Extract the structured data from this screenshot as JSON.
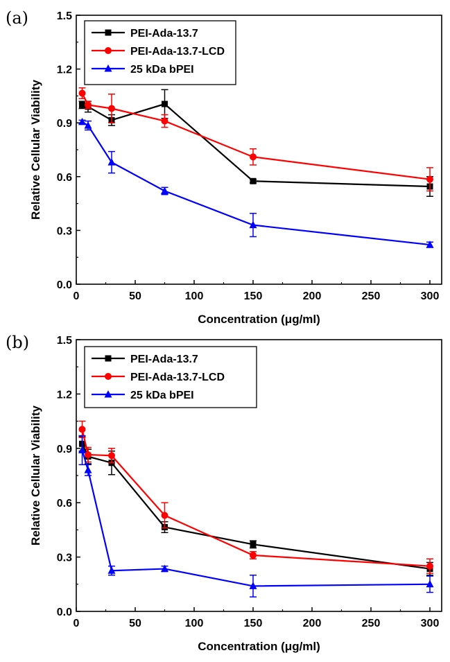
{
  "chart_data": [
    {
      "type": "line",
      "panel_label": "(a)",
      "xlabel": "Concentration (μg/ml)",
      "ylabel": "Relative Cellular Viability",
      "xlim": [
        0,
        310
      ],
      "ylim": [
        0,
        1.5
      ],
      "x_ticks": [
        0,
        50,
        100,
        150,
        200,
        250,
        300
      ],
      "y_ticks": [
        0.0,
        0.3,
        0.6,
        0.9,
        1.2,
        1.5
      ],
      "x_tick_labels": [
        "0",
        "50",
        "100",
        "150",
        "200",
        "250",
        "300"
      ],
      "y_tick_labels": [
        "0.0",
        "0.3",
        "0.6",
        "0.9",
        "1.2",
        "1.5"
      ],
      "legend_position": "top-left",
      "grid": false,
      "series": [
        {
          "name": "PEI-Ada-13.7",
          "color": "#000000",
          "marker": "square",
          "x": [
            5,
            10,
            30,
            75,
            150,
            300
          ],
          "y": [
            1.0,
            0.99,
            0.915,
            1.005,
            0.575,
            0.545
          ],
          "err": [
            0.02,
            0.03,
            0.03,
            0.08,
            0.01,
            0.055
          ]
        },
        {
          "name": "PEI-Ada-13.7-LCD",
          "color": "#ff0000",
          "marker": "circle",
          "x": [
            5,
            10,
            30,
            75,
            150,
            300
          ],
          "y": [
            1.065,
            1.0,
            0.98,
            0.91,
            0.71,
            0.585
          ],
          "err": [
            0.03,
            0.02,
            0.08,
            0.035,
            0.045,
            0.065
          ]
        },
        {
          "name": "25 kDa bPEI",
          "color": "#0000ff",
          "marker": "triangle",
          "x": [
            5,
            10,
            30,
            75,
            150,
            300
          ],
          "y": [
            0.905,
            0.885,
            0.68,
            0.52,
            0.33,
            0.22
          ],
          "err": [
            0.01,
            0.025,
            0.06,
            0.02,
            0.065,
            0.015
          ]
        }
      ]
    },
    {
      "type": "line",
      "panel_label": "(b)",
      "xlabel": "Concentration (μg/ml)",
      "ylabel": "Relative Cellular Viability",
      "xlim": [
        0,
        310
      ],
      "ylim": [
        0,
        1.5
      ],
      "x_ticks": [
        0,
        50,
        100,
        150,
        200,
        250,
        300
      ],
      "y_ticks": [
        0.0,
        0.3,
        0.6,
        0.9,
        1.2,
        1.5
      ],
      "x_tick_labels": [
        "0",
        "50",
        "100",
        "150",
        "200",
        "250",
        "300"
      ],
      "y_tick_labels": [
        "0.0",
        "0.3",
        "0.6",
        "0.9",
        "1.2",
        "1.5"
      ],
      "legend_position": "top-left",
      "grid": false,
      "series": [
        {
          "name": "PEI-Ada-13.7",
          "color": "#000000",
          "marker": "square",
          "x": [
            5,
            10,
            30,
            75,
            150,
            300
          ],
          "y": [
            0.925,
            0.855,
            0.82,
            0.465,
            0.37,
            0.235
          ],
          "err": [
            0.04,
            0.04,
            0.065,
            0.03,
            0.02,
            0.035
          ]
        },
        {
          "name": "PEI-Ada-13.7-LCD",
          "color": "#ff0000",
          "marker": "circle",
          "x": [
            5,
            10,
            30,
            75,
            150,
            300
          ],
          "y": [
            1.005,
            0.865,
            0.86,
            0.53,
            0.31,
            0.25
          ],
          "err": [
            0.045,
            0.04,
            0.04,
            0.07,
            0.02,
            0.04
          ]
        },
        {
          "name": "25 kDa bPEI",
          "color": "#0000ff",
          "marker": "triangle",
          "x": [
            5,
            10,
            30,
            75,
            150,
            300
          ],
          "y": [
            0.89,
            0.78,
            0.225,
            0.235,
            0.14,
            0.15
          ],
          "err": [
            0.08,
            0.03,
            0.025,
            0.015,
            0.06,
            0.045
          ]
        }
      ]
    }
  ]
}
